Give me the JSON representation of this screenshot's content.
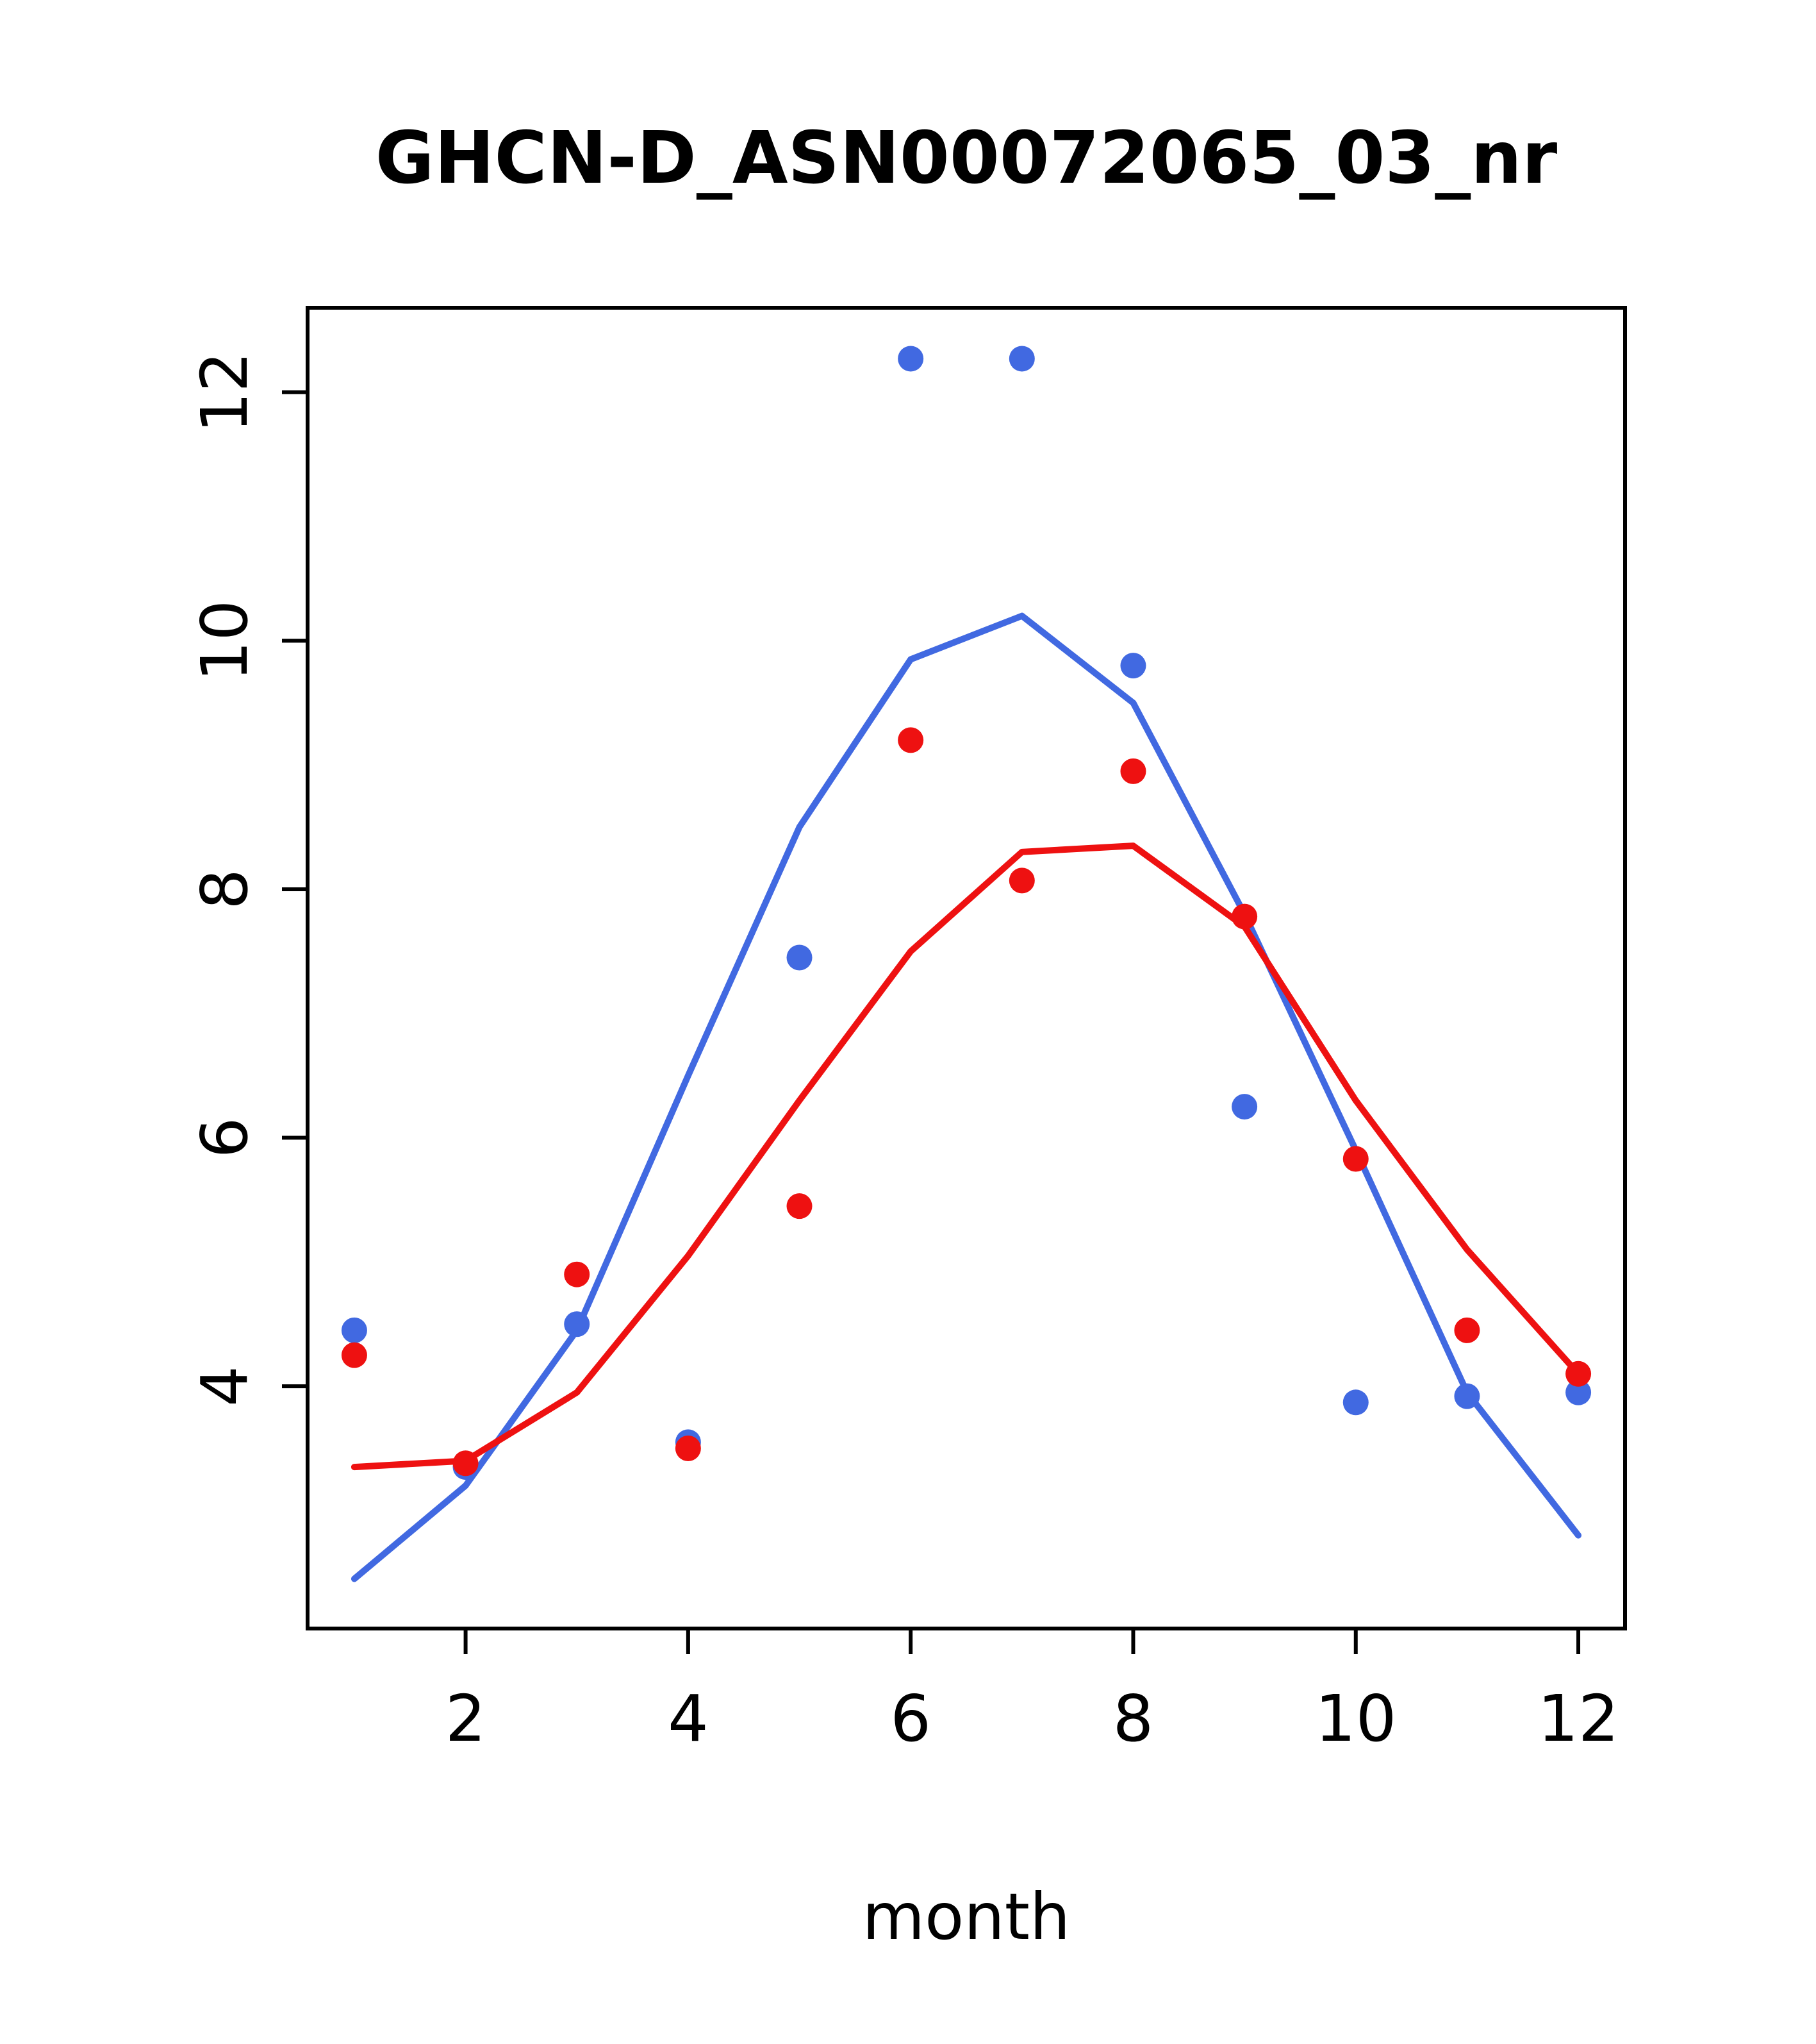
{
  "figure": {
    "background": "#ffffff"
  },
  "chart_data": {
    "type": "scatter",
    "title": "GHCN-D_ASN00072065_03_nr",
    "xlabel": "month",
    "ylabel": "",
    "x_ticks": [
      2,
      4,
      6,
      8,
      10,
      12
    ],
    "y_ticks": [
      4,
      6,
      8,
      10,
      12
    ],
    "x_range": [
      0.58,
      12.42
    ],
    "y_range": [
      2.05,
      12.68
    ],
    "grid": false,
    "legend": "none",
    "months": [
      1,
      2,
      3,
      4,
      5,
      6,
      7,
      8,
      9,
      10,
      11,
      12
    ],
    "colors": {
      "blue": "#4169e1",
      "red": "#ee1111"
    },
    "series": [
      {
        "name": "blue-line",
        "type": "line",
        "color": "#4169e1",
        "values": [
          2.45,
          3.2,
          4.45,
          6.5,
          8.5,
          9.85,
          10.2,
          9.5,
          7.8,
          5.9,
          3.95,
          2.8
        ]
      },
      {
        "name": "red-line",
        "type": "line",
        "color": "#ee1111",
        "values": [
          3.35,
          3.4,
          3.95,
          5.05,
          6.3,
          7.5,
          8.3,
          8.35,
          7.7,
          6.3,
          5.1,
          4.1
        ]
      },
      {
        "name": "blue-points",
        "type": "points",
        "color": "#4169e1",
        "values": [
          4.45,
          3.35,
          4.5,
          3.55,
          7.45,
          12.27,
          12.27,
          9.8,
          6.25,
          3.87,
          3.92,
          3.95
        ]
      },
      {
        "name": "red-points",
        "type": "points",
        "color": "#ee1111",
        "values": [
          4.25,
          3.38,
          4.9,
          3.5,
          5.45,
          9.2,
          8.07,
          8.95,
          7.78,
          5.83,
          4.45,
          4.1
        ]
      }
    ]
  }
}
